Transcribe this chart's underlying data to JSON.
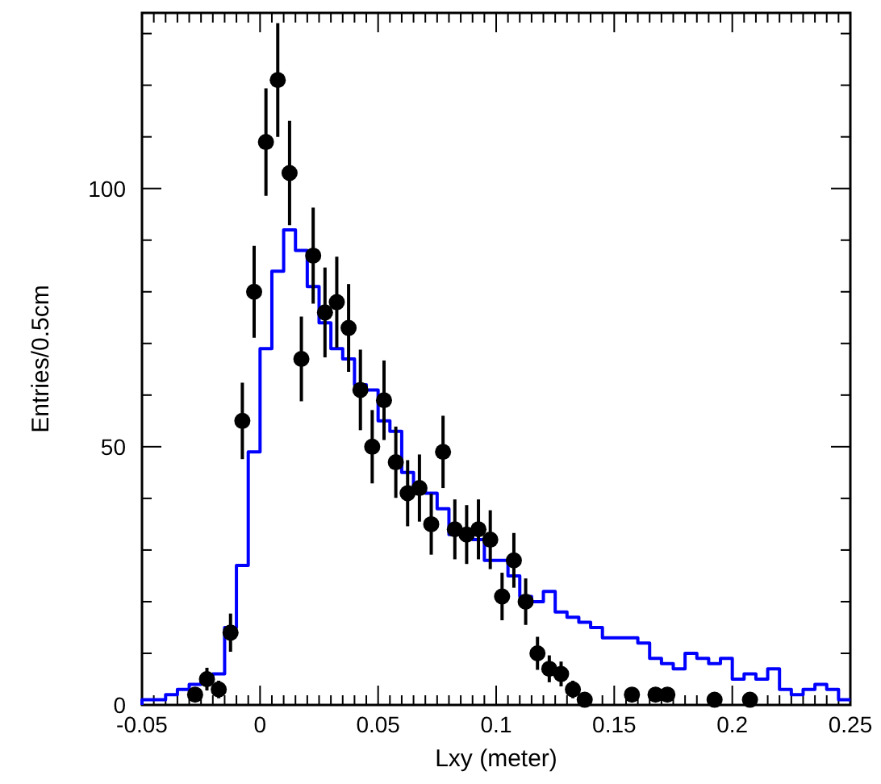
{
  "chart_data": {
    "type": "histogram",
    "xlabel": "Lxy (meter)",
    "ylabel": "Entries/0.5cm",
    "xlim": [
      -0.05,
      0.25
    ],
    "ylim": [
      0,
      134
    ],
    "xticks": [
      {
        "value": -0.05,
        "label": "-0.05"
      },
      {
        "value": -0.045,
        "label": null
      },
      {
        "value": -0.04,
        "label": null
      },
      {
        "value": -0.035,
        "label": null
      },
      {
        "value": -0.03,
        "label": null
      },
      {
        "value": -0.025,
        "label": null
      },
      {
        "value": -0.02,
        "label": null
      },
      {
        "value": -0.015,
        "label": null
      },
      {
        "value": -0.01,
        "label": null
      },
      {
        "value": -0.005,
        "label": null
      },
      {
        "value": 0,
        "label": "0"
      },
      {
        "value": 0.005,
        "label": null
      },
      {
        "value": 0.01,
        "label": null
      },
      {
        "value": 0.015,
        "label": null
      },
      {
        "value": 0.02,
        "label": null
      },
      {
        "value": 0.025,
        "label": null
      },
      {
        "value": 0.03,
        "label": null
      },
      {
        "value": 0.035,
        "label": null
      },
      {
        "value": 0.04,
        "label": null
      },
      {
        "value": 0.045,
        "label": null
      },
      {
        "value": 0.05,
        "label": "0.05"
      },
      {
        "value": 0.055,
        "label": null
      },
      {
        "value": 0.06,
        "label": null
      },
      {
        "value": 0.065,
        "label": null
      },
      {
        "value": 0.07,
        "label": null
      },
      {
        "value": 0.075,
        "label": null
      },
      {
        "value": 0.08,
        "label": null
      },
      {
        "value": 0.085,
        "label": null
      },
      {
        "value": 0.09,
        "label": null
      },
      {
        "value": 0.095,
        "label": null
      },
      {
        "value": 0.1,
        "label": "0.1"
      },
      {
        "value": 0.105,
        "label": null
      },
      {
        "value": 0.11,
        "label": null
      },
      {
        "value": 0.115,
        "label": null
      },
      {
        "value": 0.12,
        "label": null
      },
      {
        "value": 0.125,
        "label": null
      },
      {
        "value": 0.13,
        "label": null
      },
      {
        "value": 0.135,
        "label": null
      },
      {
        "value": 0.14,
        "label": null
      },
      {
        "value": 0.145,
        "label": null
      },
      {
        "value": 0.15,
        "label": "0.15"
      },
      {
        "value": 0.155,
        "label": null
      },
      {
        "value": 0.16,
        "label": null
      },
      {
        "value": 0.165,
        "label": null
      },
      {
        "value": 0.17,
        "label": null
      },
      {
        "value": 0.175,
        "label": null
      },
      {
        "value": 0.18,
        "label": null
      },
      {
        "value": 0.185,
        "label": null
      },
      {
        "value": 0.19,
        "label": null
      },
      {
        "value": 0.195,
        "label": null
      },
      {
        "value": 0.2,
        "label": "0.2"
      },
      {
        "value": 0.205,
        "label": null
      },
      {
        "value": 0.21,
        "label": null
      },
      {
        "value": 0.215,
        "label": null
      },
      {
        "value": 0.22,
        "label": null
      },
      {
        "value": 0.225,
        "label": null
      },
      {
        "value": 0.23,
        "label": null
      },
      {
        "value": 0.235,
        "label": null
      },
      {
        "value": 0.24,
        "label": null
      },
      {
        "value": 0.245,
        "label": null
      },
      {
        "value": 0.25,
        "label": "0.25"
      }
    ],
    "yticks": [
      0,
      {
        "value": 10,
        "label": null
      },
      {
        "value": 20,
        "label": null
      },
      {
        "value": 30,
        "label": null
      },
      {
        "value": 40,
        "label": null
      },
      50,
      {
        "value": 60,
        "label": null
      },
      {
        "value": 70,
        "label": null
      },
      {
        "value": 80,
        "label": null
      },
      {
        "value": 90,
        "label": null
      },
      100,
      {
        "value": 110,
        "label": null
      },
      {
        "value": 120,
        "label": null
      },
      {
        "value": 130,
        "label": null
      }
    ],
    "grid": false,
    "series": [
      {
        "type": "histogram",
        "color": "#0000ff",
        "bins": [
          -0.05,
          -0.045,
          -0.04,
          -0.035,
          -0.03,
          -0.025,
          -0.02,
          -0.015,
          -0.01,
          -0.005,
          0,
          0.005,
          0.01,
          0.015,
          0.02,
          0.025,
          0.03,
          0.035,
          0.04,
          0.045,
          0.05,
          0.055,
          0.06,
          0.065,
          0.07,
          0.075,
          0.08,
          0.085,
          0.09,
          0.095,
          0.1,
          0.105,
          0.11,
          0.115,
          0.12,
          0.125,
          0.13,
          0.135,
          0.14,
          0.145,
          0.15,
          0.155,
          0.16,
          0.165,
          0.17,
          0.175,
          0.18,
          0.185,
          0.19,
          0.195,
          0.2,
          0.205,
          0.21,
          0.215,
          0.22,
          0.225,
          0.23,
          0.235,
          0.24,
          0.245,
          0.25
        ],
        "values": [
          1,
          1,
          2,
          3,
          4,
          5,
          6,
          15,
          27,
          49,
          69,
          84,
          92,
          88,
          81,
          74,
          69,
          67,
          62,
          61,
          55,
          53,
          45,
          42,
          41,
          38,
          33,
          34,
          32,
          28,
          28,
          25,
          21,
          20,
          22,
          18,
          17,
          16,
          15,
          13,
          13,
          13,
          12,
          9,
          8,
          7,
          10,
          9,
          8,
          9,
          5,
          6,
          5,
          7,
          3,
          2,
          3,
          4,
          3,
          1
        ]
      },
      {
        "type": "scatter",
        "color": "#000000",
        "marker": "circle",
        "x": [
          -0.0275,
          -0.0225,
          -0.0175,
          -0.0125,
          -0.0075,
          -0.0025,
          0.0025,
          0.0075,
          0.0125,
          0.0175,
          0.0225,
          0.0275,
          0.0325,
          0.0375,
          0.0425,
          0.0475,
          0.0525,
          0.0575,
          0.0625,
          0.0675,
          0.0725,
          0.0775,
          0.0825,
          0.0875,
          0.0925,
          0.0975,
          0.1025,
          0.1075,
          0.1125,
          0.1175,
          0.1225,
          0.1275,
          0.1325,
          0.1375,
          0.1575,
          0.1675,
          0.1725,
          0.1925,
          0.2075
        ],
        "values": [
          2,
          5,
          3,
          14,
          55,
          80,
          109,
          121,
          103,
          67,
          87,
          76,
          78,
          73,
          61,
          50,
          59,
          47,
          41,
          42,
          35,
          49,
          34,
          33,
          34,
          32,
          21,
          28,
          20,
          10,
          7,
          6,
          3,
          1,
          2,
          2,
          2,
          1,
          1
        ],
        "errors": [
          null,
          2.2,
          1.7,
          3.7,
          7.4,
          8.9,
          10.4,
          11,
          10.1,
          8.2,
          9.3,
          8.7,
          8.8,
          8.5,
          7.8,
          7.1,
          7.7,
          6.9,
          6.4,
          6.5,
          5.9,
          7,
          5.8,
          5.7,
          5.8,
          5.7,
          4.6,
          5.3,
          4.5,
          3.2,
          2.6,
          2.4,
          1.7,
          null,
          null,
          null,
          null,
          null,
          null
        ]
      }
    ]
  }
}
